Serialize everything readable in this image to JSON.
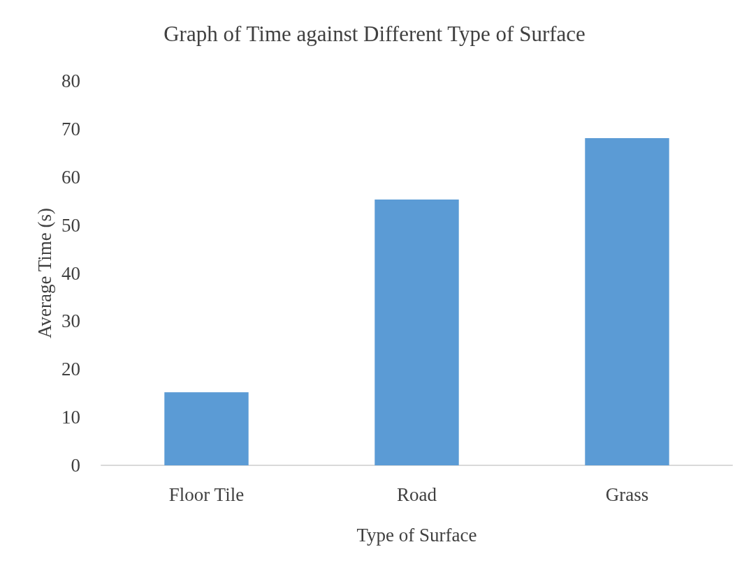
{
  "chart_data": {
    "type": "bar",
    "title": "Graph of Time against Different Type of Surface",
    "xlabel": "Type of Surface",
    "ylabel": "Average Time (s)",
    "categories": [
      "Floor Tile",
      "Road",
      "Grass"
    ],
    "values": [
      15.2,
      55.3,
      68.1
    ],
    "color": "#5b9bd5",
    "ylim": [
      0,
      80
    ],
    "yticks": [
      0,
      10,
      20,
      30,
      40,
      50,
      60,
      70,
      80
    ],
    "grid": false
  }
}
